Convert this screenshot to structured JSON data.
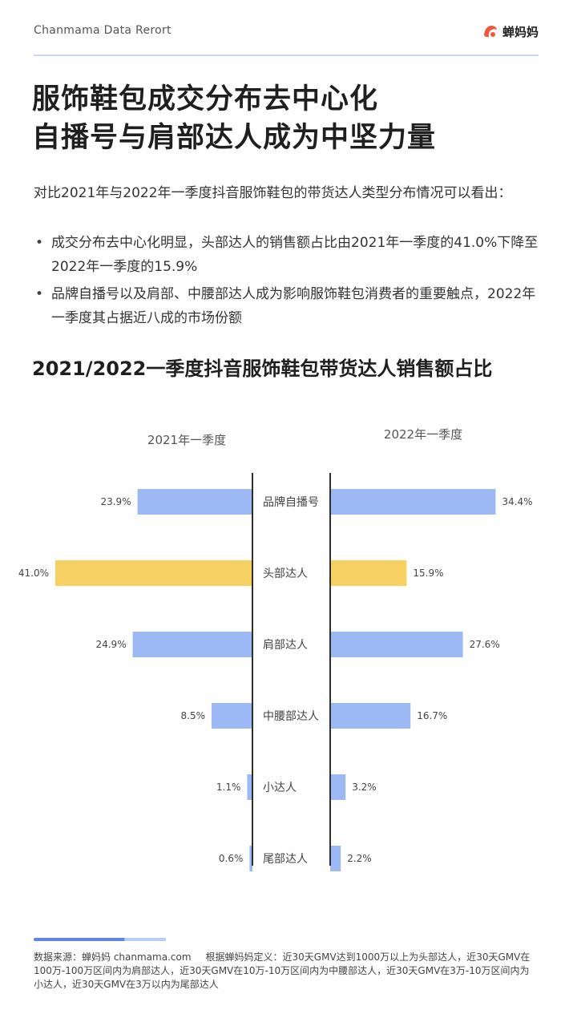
{
  "header": {
    "brand_en": "Chanmama Data Rerort",
    "logo_text": "蝉妈妈",
    "accent": "#f0583a"
  },
  "title": {
    "line1": "服饰鞋包成交分布去中心化",
    "line2": "自播号与肩部达人成为中坚力量"
  },
  "intro": "对比2021年与2022年一季度抖音服饰鞋包的带货达人类型分布情况可以看出：",
  "bullets": [
    "成交分布去中心化明显，头部达人的销售额占比由2021年一季度的41.0%下降至2022年一季度的15.9%",
    "品牌自播号以及肩部、中腰部达人成为影响服饰鞋包消费者的重要触点，2022年一季度其占据近八成的市场份额"
  ],
  "chart_data": {
    "type": "bar",
    "title": "2021/2022一季度抖音服饰鞋包带货达人销售额占比",
    "categories": [
      "品牌自播号",
      "头部达人",
      "肩部达人",
      "中腰部达人",
      "小达人",
      "尾部达人"
    ],
    "series": [
      {
        "name": "2021年一季度",
        "values": [
          23.9,
          41.0,
          24.9,
          8.5,
          1.1,
          0.6
        ],
        "labels": [
          "23.9%",
          "41.0%",
          "24.9%",
          "8.5%",
          "1.1%",
          "0.6%"
        ]
      },
      {
        "name": "2022年一季度",
        "values": [
          34.4,
          15.9,
          27.6,
          16.7,
          3.2,
          2.2
        ],
        "labels": [
          "34.4%",
          "15.9%",
          "27.6%",
          "16.7%",
          "3.2%",
          "2.2%"
        ]
      }
    ],
    "highlight_category": "头部达人",
    "unit": "%",
    "colors": {
      "bar": "#9db9f5",
      "highlight": "#f6d162",
      "axis": "#2e2e2e"
    }
  },
  "footer": {
    "source": "数据来源：蝉妈妈 chanmama.com",
    "definition": "根据蝉妈妈定义：近30天GMV达到1000万以上为头部达人，近30天GMV在100万-100万区间内为肩部达人，近30天GMV在10万-10万区间内为中腰部达人，近30天GMV在3万-10万区间内为小达人，近30天GMV在3万以内为尾部达人"
  }
}
